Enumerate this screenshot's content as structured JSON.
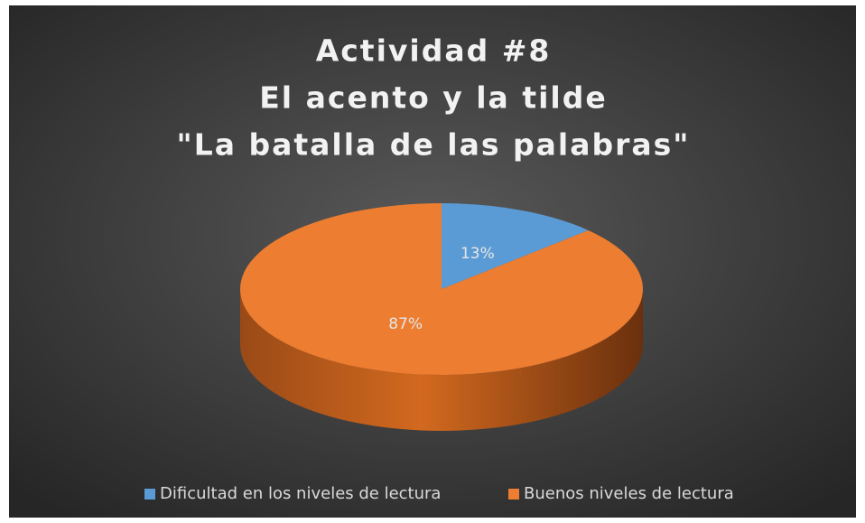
{
  "chart_data": {
    "type": "pie",
    "title": [
      "Actividad #8",
      "El acento y la tilde",
      "\"La batalla de las palabras\""
    ],
    "categories": [
      "Dificultad en los niveles de lectura",
      "Buenos niveles de lectura"
    ],
    "values": [
      13,
      87
    ],
    "value_labels": [
      "13%",
      "87%"
    ],
    "colors": [
      "#5b9bd5",
      "#ed7d31"
    ],
    "legend": "bottom"
  }
}
